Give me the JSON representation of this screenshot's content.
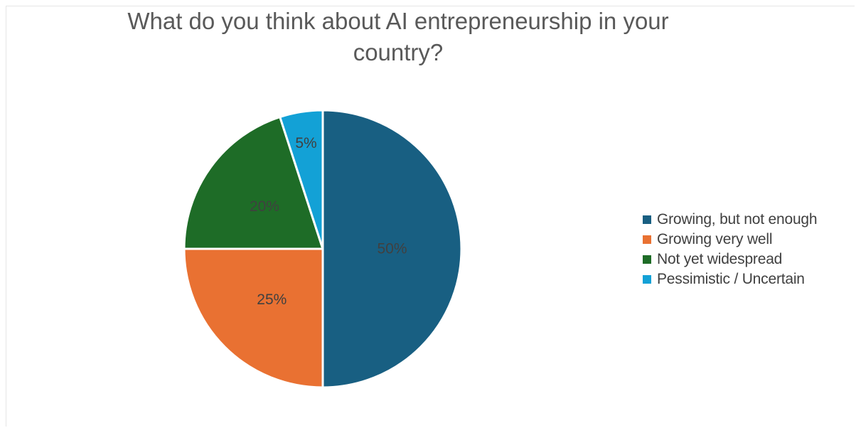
{
  "chart_data": {
    "type": "pie",
    "title": "What do you think about AI entrepreneurship in your country?",
    "categories": [
      "Growing, but not enough",
      "Growing very well",
      "Not yet widespread",
      "Pessimistic / Uncertain"
    ],
    "values": [
      50,
      25,
      20,
      5
    ],
    "data_labels": [
      "50%",
      "25%",
      "20%",
      "5%"
    ],
    "colors": [
      "#185f82",
      "#e97132",
      "#1e6c27",
      "#13a1d6"
    ],
    "start_angle_deg": 0,
    "direction": "clockwise",
    "legend_position": "right"
  }
}
